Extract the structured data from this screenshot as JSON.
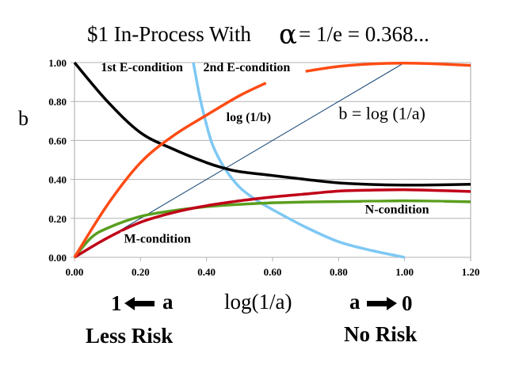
{
  "chart_data": {
    "type": "line",
    "title": "$1 In-Process With",
    "title_symbol": "α",
    "title_tail": "= 1/e = 0.368...",
    "xlabel": "log(1/a)",
    "ylabel": "b",
    "xlim": [
      0,
      1.2
    ],
    "ylim": [
      0,
      1.0
    ],
    "grid": true,
    "x_ticks": [
      "0.00",
      "0.20",
      "0.40",
      "0.60",
      "0.80",
      "1.00",
      "1.20"
    ],
    "y_ticks": [
      "0.00",
      "0.20",
      "0.40",
      "0.60",
      "0.80",
      "1.00"
    ],
    "series": [
      {
        "name": "1st E-condition",
        "color": "#000000",
        "x": [
          0,
          0.1,
          0.2,
          0.3,
          0.4,
          0.455,
          0.5,
          0.6,
          0.7,
          0.8,
          0.9,
          1.0,
          1.1,
          1.2
        ],
        "y": [
          1.0,
          0.8,
          0.64,
          0.555,
          0.486,
          0.457,
          0.44,
          0.42,
          0.4,
          0.382,
          0.374,
          0.371,
          0.372,
          0.375
        ]
      },
      {
        "name": "2nd E-condition",
        "color": "#ff4b14",
        "x": [
          0,
          0.1,
          0.2,
          0.3,
          0.4,
          0.5,
          0.58,
          0.7,
          0.8,
          0.9,
          1.0,
          1.1,
          1.2
        ],
        "y": [
          0,
          0.27,
          0.486,
          0.625,
          0.73,
          0.83,
          0.895,
          0.955,
          0.98,
          0.993,
          0.997,
          0.993,
          0.985
        ],
        "gap": [
          0.59,
          0.69
        ]
      },
      {
        "name": "log (1/b)",
        "color": "#7ec8f4",
        "x": [
          0.36,
          0.38,
          0.4,
          0.42,
          0.455,
          0.5,
          0.55,
          0.6,
          0.7,
          0.8,
          0.9,
          1.0
        ],
        "y": [
          1.0,
          0.82,
          0.68,
          0.57,
          0.457,
          0.36,
          0.295,
          0.245,
          0.155,
          0.08,
          0.035,
          0.0
        ]
      },
      {
        "name": "b = log (1/a)",
        "color": "#0b3f70",
        "x": [
          0,
          1.0
        ],
        "y": [
          0,
          1.0
        ]
      },
      {
        "name": "M-condition",
        "color": "#c00018",
        "x": [
          0,
          0.1,
          0.2,
          0.3,
          0.4,
          0.5,
          0.6,
          0.7,
          0.8,
          0.9,
          1.0,
          1.1,
          1.2
        ],
        "y": [
          0,
          0.1,
          0.18,
          0.23,
          0.265,
          0.29,
          0.31,
          0.325,
          0.34,
          0.345,
          0.347,
          0.343,
          0.338
        ]
      },
      {
        "name": "N-condition",
        "color": "#5a9e1e",
        "x": [
          0,
          0.05,
          0.1,
          0.2,
          0.3,
          0.4,
          0.5,
          0.6,
          0.7,
          0.8,
          0.9,
          1.0,
          1.1,
          1.2
        ],
        "y": [
          0,
          0.1,
          0.15,
          0.21,
          0.24,
          0.26,
          0.272,
          0.28,
          0.284,
          0.286,
          0.288,
          0.29,
          0.288,
          0.285
        ]
      }
    ],
    "annotations": [
      {
        "text": "1st E-condition",
        "x": 0.08,
        "y": 0.955,
        "style": "bold"
      },
      {
        "text": "2nd E-condition",
        "x": 0.39,
        "y": 0.955,
        "style": "bold"
      },
      {
        "text": "log (1/b)",
        "x": 0.46,
        "y": 0.7,
        "style": "bold"
      },
      {
        "text": "b = log (1/a)",
        "x": 0.8,
        "y": 0.71,
        "style": "normal"
      },
      {
        "text": "N-condition",
        "x": 0.88,
        "y": 0.225,
        "style": "bold"
      },
      {
        "text": "M-condition",
        "x": 0.15,
        "y": 0.075,
        "style": "bold"
      }
    ],
    "bottom_labels": {
      "left_one": "1",
      "left_a": "a",
      "center": "log(1/a)",
      "right_a": "a",
      "right_zero": "0",
      "less_risk": "Less Risk",
      "no_risk": "No Risk"
    }
  }
}
